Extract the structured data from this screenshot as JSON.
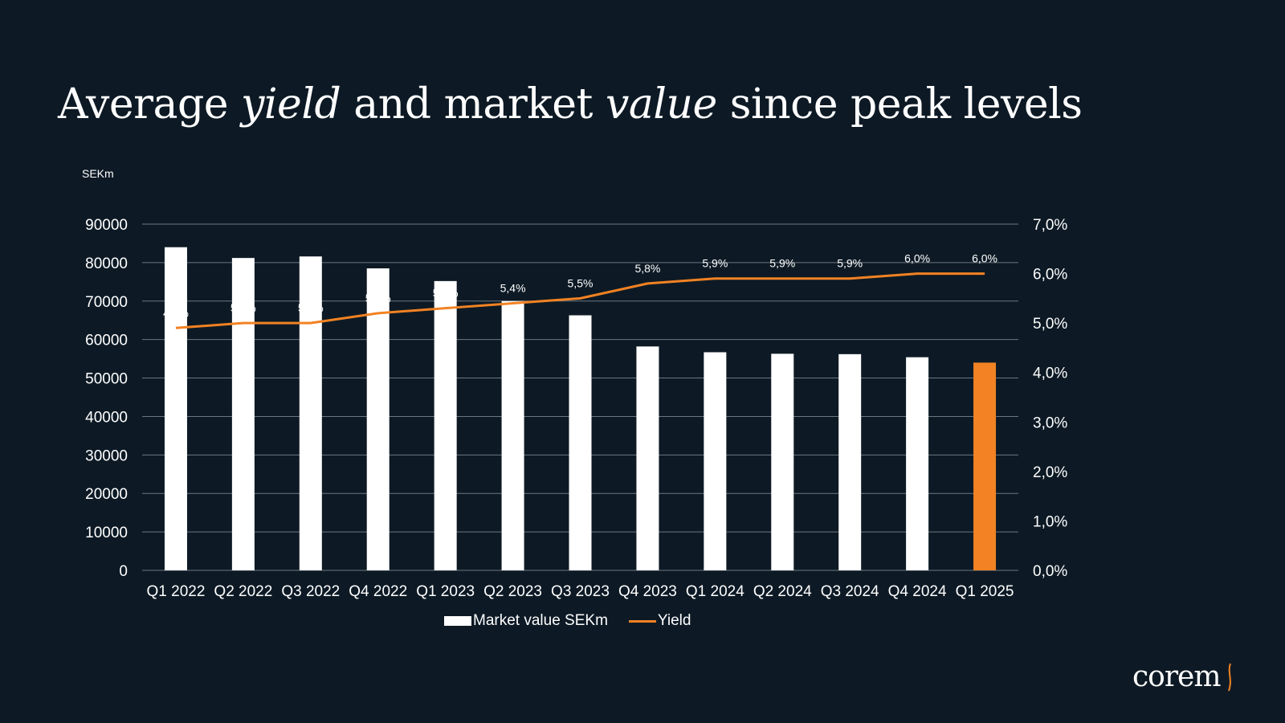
{
  "title": {
    "part1": "Average ",
    "italic1": "yield",
    "part2": " and market ",
    "italic2": "value",
    "part3": " since peak levels"
  },
  "unit_label": "SEKm",
  "chart_data": {
    "type": "bar",
    "categories": [
      "Q1 2022",
      "Q2 2022",
      "Q3 2022",
      "Q4 2022",
      "Q1 2023",
      "Q2 2023",
      "Q3 2023",
      "Q4 2023",
      "Q1 2024",
      "Q2 2024",
      "Q3 2024",
      "Q4 2024",
      "Q1 2025"
    ],
    "series": [
      {
        "name": "Market value SEKm",
        "type": "bar",
        "axis": "left",
        "values": [
          84000,
          81200,
          81600,
          78500,
          75200,
          70000,
          66300,
          58200,
          56700,
          56300,
          56200,
          55400,
          54000
        ],
        "color": "#ffffff",
        "highlight_last_color": "#f28223"
      },
      {
        "name": "Yield",
        "type": "line",
        "axis": "right",
        "values": [
          4.9,
          5.0,
          5.0,
          5.2,
          5.3,
          5.4,
          5.5,
          5.8,
          5.9,
          5.9,
          5.9,
          6.0,
          6.0
        ],
        "labels": [
          "4,9%",
          "5,0%",
          "5,0%",
          "5,2%",
          "5,3%",
          "5,4%",
          "5,5%",
          "5,8%",
          "5,9%",
          "5,9%",
          "5,9%",
          "6,0%",
          "6,0%"
        ],
        "color": "#f28223"
      }
    ],
    "y_left": {
      "min": 0,
      "max": 90000,
      "ticks": [
        "0",
        "10000",
        "20000",
        "30000",
        "40000",
        "50000",
        "60000",
        "70000",
        "80000",
        "90000"
      ]
    },
    "y_right": {
      "min": 0,
      "max": 7,
      "ticks": [
        "0,0%",
        "1,0%",
        "2,0%",
        "3,0%",
        "4,0%",
        "5,0%",
        "6,0%",
        "7,0%"
      ]
    },
    "grid": true,
    "legend_position": "bottom-center"
  },
  "legend": {
    "bar_label": "Market value SEKm",
    "line_label": "Yield"
  },
  "logo": {
    "text": "corem",
    "name": "corem-logo"
  },
  "colors": {
    "background": "#0d1a25",
    "accent": "#f28223",
    "grid": "#6b7680"
  }
}
